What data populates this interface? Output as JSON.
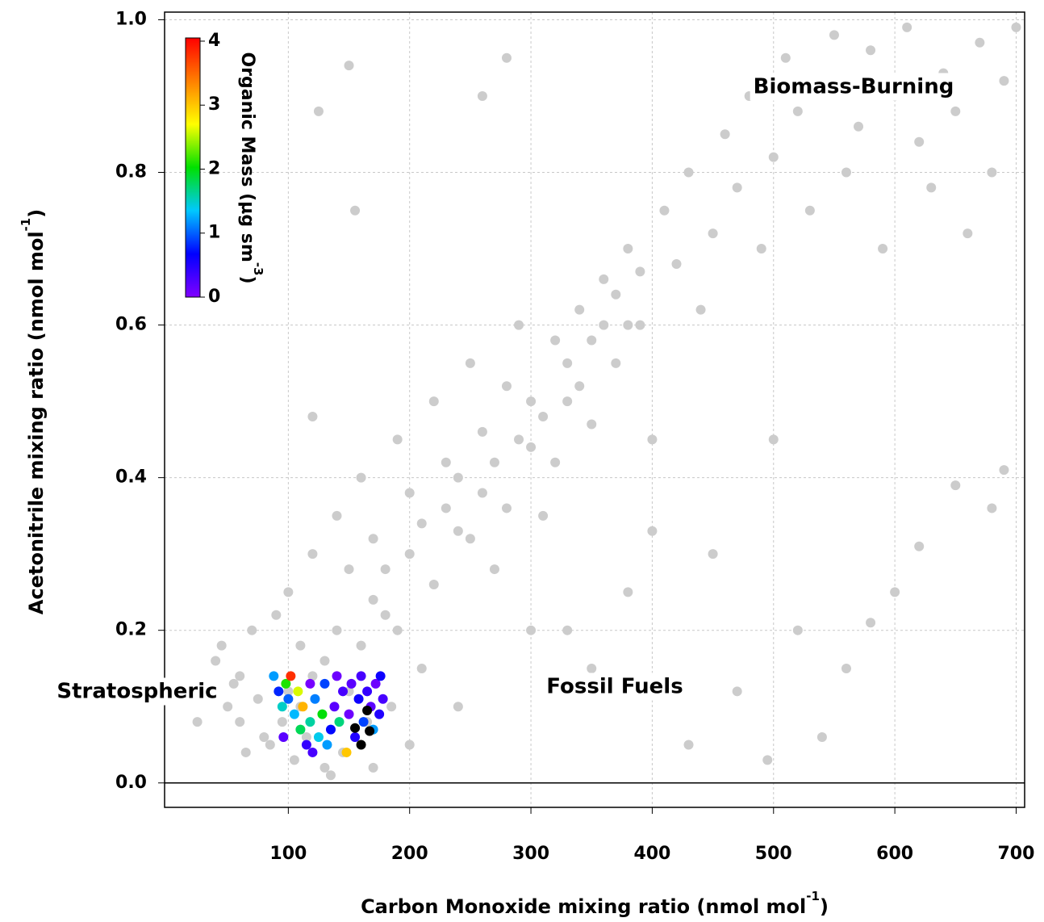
{
  "chart_data": {
    "type": "scatter",
    "x_label": {
      "text": "Carbon Monoxide mixing ratio (nmol mol",
      "sup": "-1",
      "close": ")"
    },
    "y_label": {
      "text": "Acetonitrile mixing ratio (nmol mol",
      "sup": "-1",
      "close": ")"
    },
    "xlim": [
      -2,
      707
    ],
    "ylim": [
      -0.032,
      1.01
    ],
    "xticks": [
      100,
      200,
      300,
      400,
      500,
      600,
      700
    ],
    "yticks": [
      {
        "value": 0,
        "label": "0.0"
      },
      0.2,
      0.4,
      0.6,
      0.8,
      {
        "value": 1,
        "label": "1.0"
      }
    ],
    "grid": true,
    "annotations": [
      "Biomass-Burning",
      "Stratospheric",
      "Fossil Fuels"
    ],
    "colorbar": {
      "label": {
        "text": "Organic Mass (µg sm",
        "sup": "-3",
        "close": ")"
      },
      "lim": [
        0,
        4.05
      ],
      "ticks": [
        0,
        1,
        2,
        3,
        4
      ],
      "colormap": [
        "#8000ff",
        "#0000ff",
        "#00c8ff",
        "#00e000",
        "#ffff00",
        "#ff8000",
        "#ff0000"
      ]
    },
    "series": [
      {
        "color": "#cccccc",
        "x": [
          25,
          30,
          40,
          50,
          60,
          45,
          70,
          80,
          65,
          90,
          100,
          110,
          120,
          130,
          140,
          150,
          160,
          170,
          180,
          190,
          200,
          210,
          220,
          230,
          240,
          250,
          260,
          270,
          280,
          290,
          300,
          310,
          320,
          330,
          340,
          350,
          360,
          370,
          380,
          390,
          400,
          410,
          420,
          430,
          440,
          450,
          460,
          470,
          480,
          490,
          500,
          510,
          520,
          530,
          540,
          550,
          560,
          570,
          580,
          590,
          600,
          610,
          620,
          630,
          640,
          650,
          660,
          670,
          680,
          690,
          700,
          120,
          150,
          155,
          125,
          260,
          280,
          300,
          350,
          380,
          420,
          450,
          500,
          520,
          560,
          600,
          650,
          680,
          690,
          620,
          580,
          540,
          495,
          430,
          470,
          400,
          330,
          240,
          200,
          170,
          135,
          100,
          110,
          120,
          130,
          140,
          150,
          160,
          170,
          180,
          190,
          200,
          210,
          220,
          230,
          240,
          250,
          260,
          270,
          280,
          290,
          300,
          310,
          320,
          330,
          340,
          350,
          360,
          370,
          380,
          390,
          85,
          95,
          105,
          115,
          145,
          165,
          185,
          60,
          75,
          55
        ],
        "y": [
          0.08,
          0.12,
          0.16,
          0.1,
          0.14,
          0.18,
          0.2,
          0.06,
          0.04,
          0.22,
          0.25,
          0.18,
          0.3,
          0.02,
          0.35,
          0.28,
          0.4,
          0.32,
          0.22,
          0.45,
          0.38,
          0.15,
          0.5,
          0.42,
          0.33,
          0.55,
          0.46,
          0.28,
          0.52,
          0.6,
          0.44,
          0.35,
          0.58,
          0.5,
          0.62,
          0.47,
          0.66,
          0.55,
          0.7,
          0.6,
          0.45,
          0.75,
          0.68,
          0.8,
          0.62,
          0.72,
          0.85,
          0.78,
          0.9,
          0.7,
          0.82,
          0.95,
          0.88,
          0.75,
          0.92,
          0.98,
          0.8,
          0.86,
          0.96,
          0.7,
          0.9,
          0.99,
          0.84,
          0.78,
          0.93,
          0.88,
          0.72,
          0.97,
          0.8,
          0.92,
          0.99,
          0.48,
          0.94,
          0.75,
          0.88,
          0.9,
          0.95,
          0.2,
          0.15,
          0.25,
          0.12,
          0.3,
          0.45,
          0.2,
          0.15,
          0.25,
          0.39,
          0.36,
          0.41,
          0.31,
          0.21,
          0.06,
          0.03,
          0.05,
          0.12,
          0.33,
          0.2,
          0.1,
          0.05,
          0.02,
          0.01,
          0.12,
          0.1,
          0.14,
          0.16,
          0.2,
          0.12,
          0.18,
          0.24,
          0.28,
          0.2,
          0.3,
          0.34,
          0.26,
          0.36,
          0.4,
          0.32,
          0.38,
          0.42,
          0.36,
          0.45,
          0.5,
          0.48,
          0.42,
          0.55,
          0.52,
          0.58,
          0.6,
          0.64,
          0.6,
          0.67,
          0.05,
          0.08,
          0.03,
          0.06,
          0.04,
          0.08,
          0.1,
          0.08,
          0.11,
          0.13
        ]
      },
      {
        "x": [
          88,
          92,
          95,
          98,
          100,
          102,
          105,
          108,
          110,
          112,
          115,
          118,
          120,
          122,
          125,
          128,
          130,
          132,
          135,
          138,
          140,
          142,
          145,
          148,
          150,
          152,
          155,
          158,
          160,
          162,
          165,
          168,
          170,
          172,
          175,
          178,
          176,
          118,
          96
        ],
        "y": [
          0.14,
          0.12,
          0.1,
          0.13,
          0.11,
          0.14,
          0.09,
          0.12,
          0.07,
          0.1,
          0.05,
          0.08,
          0.04,
          0.11,
          0.06,
          0.09,
          0.13,
          0.05,
          0.07,
          0.1,
          0.14,
          0.08,
          0.12,
          0.04,
          0.09,
          0.13,
          0.06,
          0.11,
          0.14,
          0.08,
          0.12,
          0.1,
          0.07,
          0.13,
          0.09,
          0.11,
          0.14,
          0.13,
          0.06
        ],
        "c": [
          1.2,
          0.8,
          1.5,
          2.1,
          1.0,
          3.8,
          1.3,
          2.6,
          1.8,
          3.1,
          0.4,
          1.6,
          0.3,
          1.1,
          1.4,
          2.0,
          0.9,
          1.2,
          0.7,
          0.2,
          0.1,
          1.7,
          0.3,
          3.0,
          0.1,
          0.2,
          0.5,
          0.6,
          0.3,
          0.9,
          0.4,
          0.2,
          1.2,
          0.1,
          0.5,
          0.3,
          0.6,
          0.05,
          0.2
        ]
      },
      {
        "color": "#000000",
        "x": [
          165,
          167,
          160,
          155
        ],
        "y": [
          0.095,
          0.068,
          0.05,
          0.072
        ]
      }
    ]
  }
}
